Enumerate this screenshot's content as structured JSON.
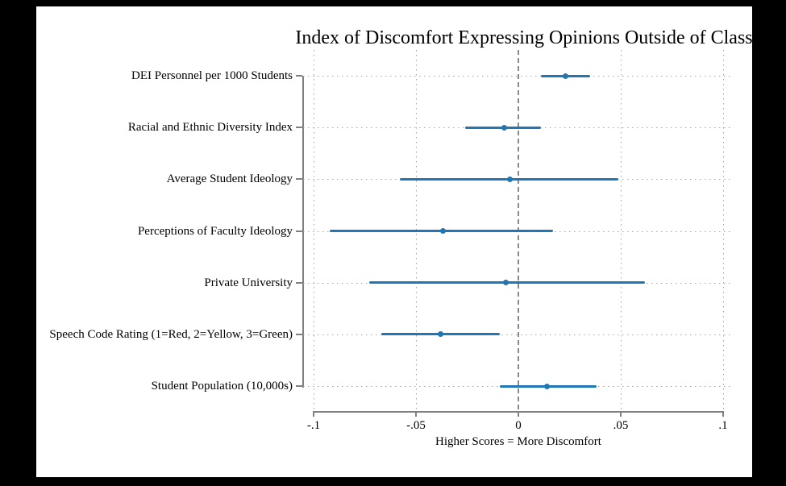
{
  "window": {
    "background": "#000000",
    "canvas_background": "#ffffff"
  },
  "chart_data": {
    "type": "scatter",
    "subtype": "coefficient-plot-with-95ci",
    "title": "Index of Discomfort Expressing Opinions Outside of Class",
    "xlabel": "Higher Scores = More Discomfort",
    "xlim": [
      -0.1,
      0.1
    ],
    "x_ticks": [
      {
        "value": -0.1,
        "label": "-.1"
      },
      {
        "value": -0.05,
        "label": "-.05"
      },
      {
        "value": 0,
        "label": "0"
      },
      {
        "value": 0.05,
        "label": ".05"
      },
      {
        "value": 0.1,
        "label": ".1"
      }
    ],
    "zero_reference_line": 0,
    "grid": true,
    "legend": "none",
    "categories": [
      "DEI Personnel per 1000 Students",
      "Racial and Ethnic Diversity Index",
      "Average Student Ideology",
      "Perceptions of Faculty Ideology",
      "Private University",
      "Speech Code Rating (1=Red, 2=Yellow, 3=Green)",
      "Student Population (10,000s)"
    ],
    "estimates": [
      0.023,
      -0.007,
      -0.004,
      -0.037,
      -0.006,
      -0.038,
      0.014
    ],
    "ci_lower": [
      0.011,
      -0.026,
      -0.058,
      -0.092,
      -0.073,
      -0.067,
      -0.009
    ],
    "ci_upper": [
      0.035,
      0.011,
      0.049,
      0.017,
      0.062,
      -0.009,
      0.038
    ],
    "colors": {
      "marker": "#2077b4",
      "ci_line": "#2077b4",
      "axis": "#808080",
      "gridline": "#a3a3a3",
      "zero_line": "#8a8a8a",
      "text": "#000000"
    }
  }
}
